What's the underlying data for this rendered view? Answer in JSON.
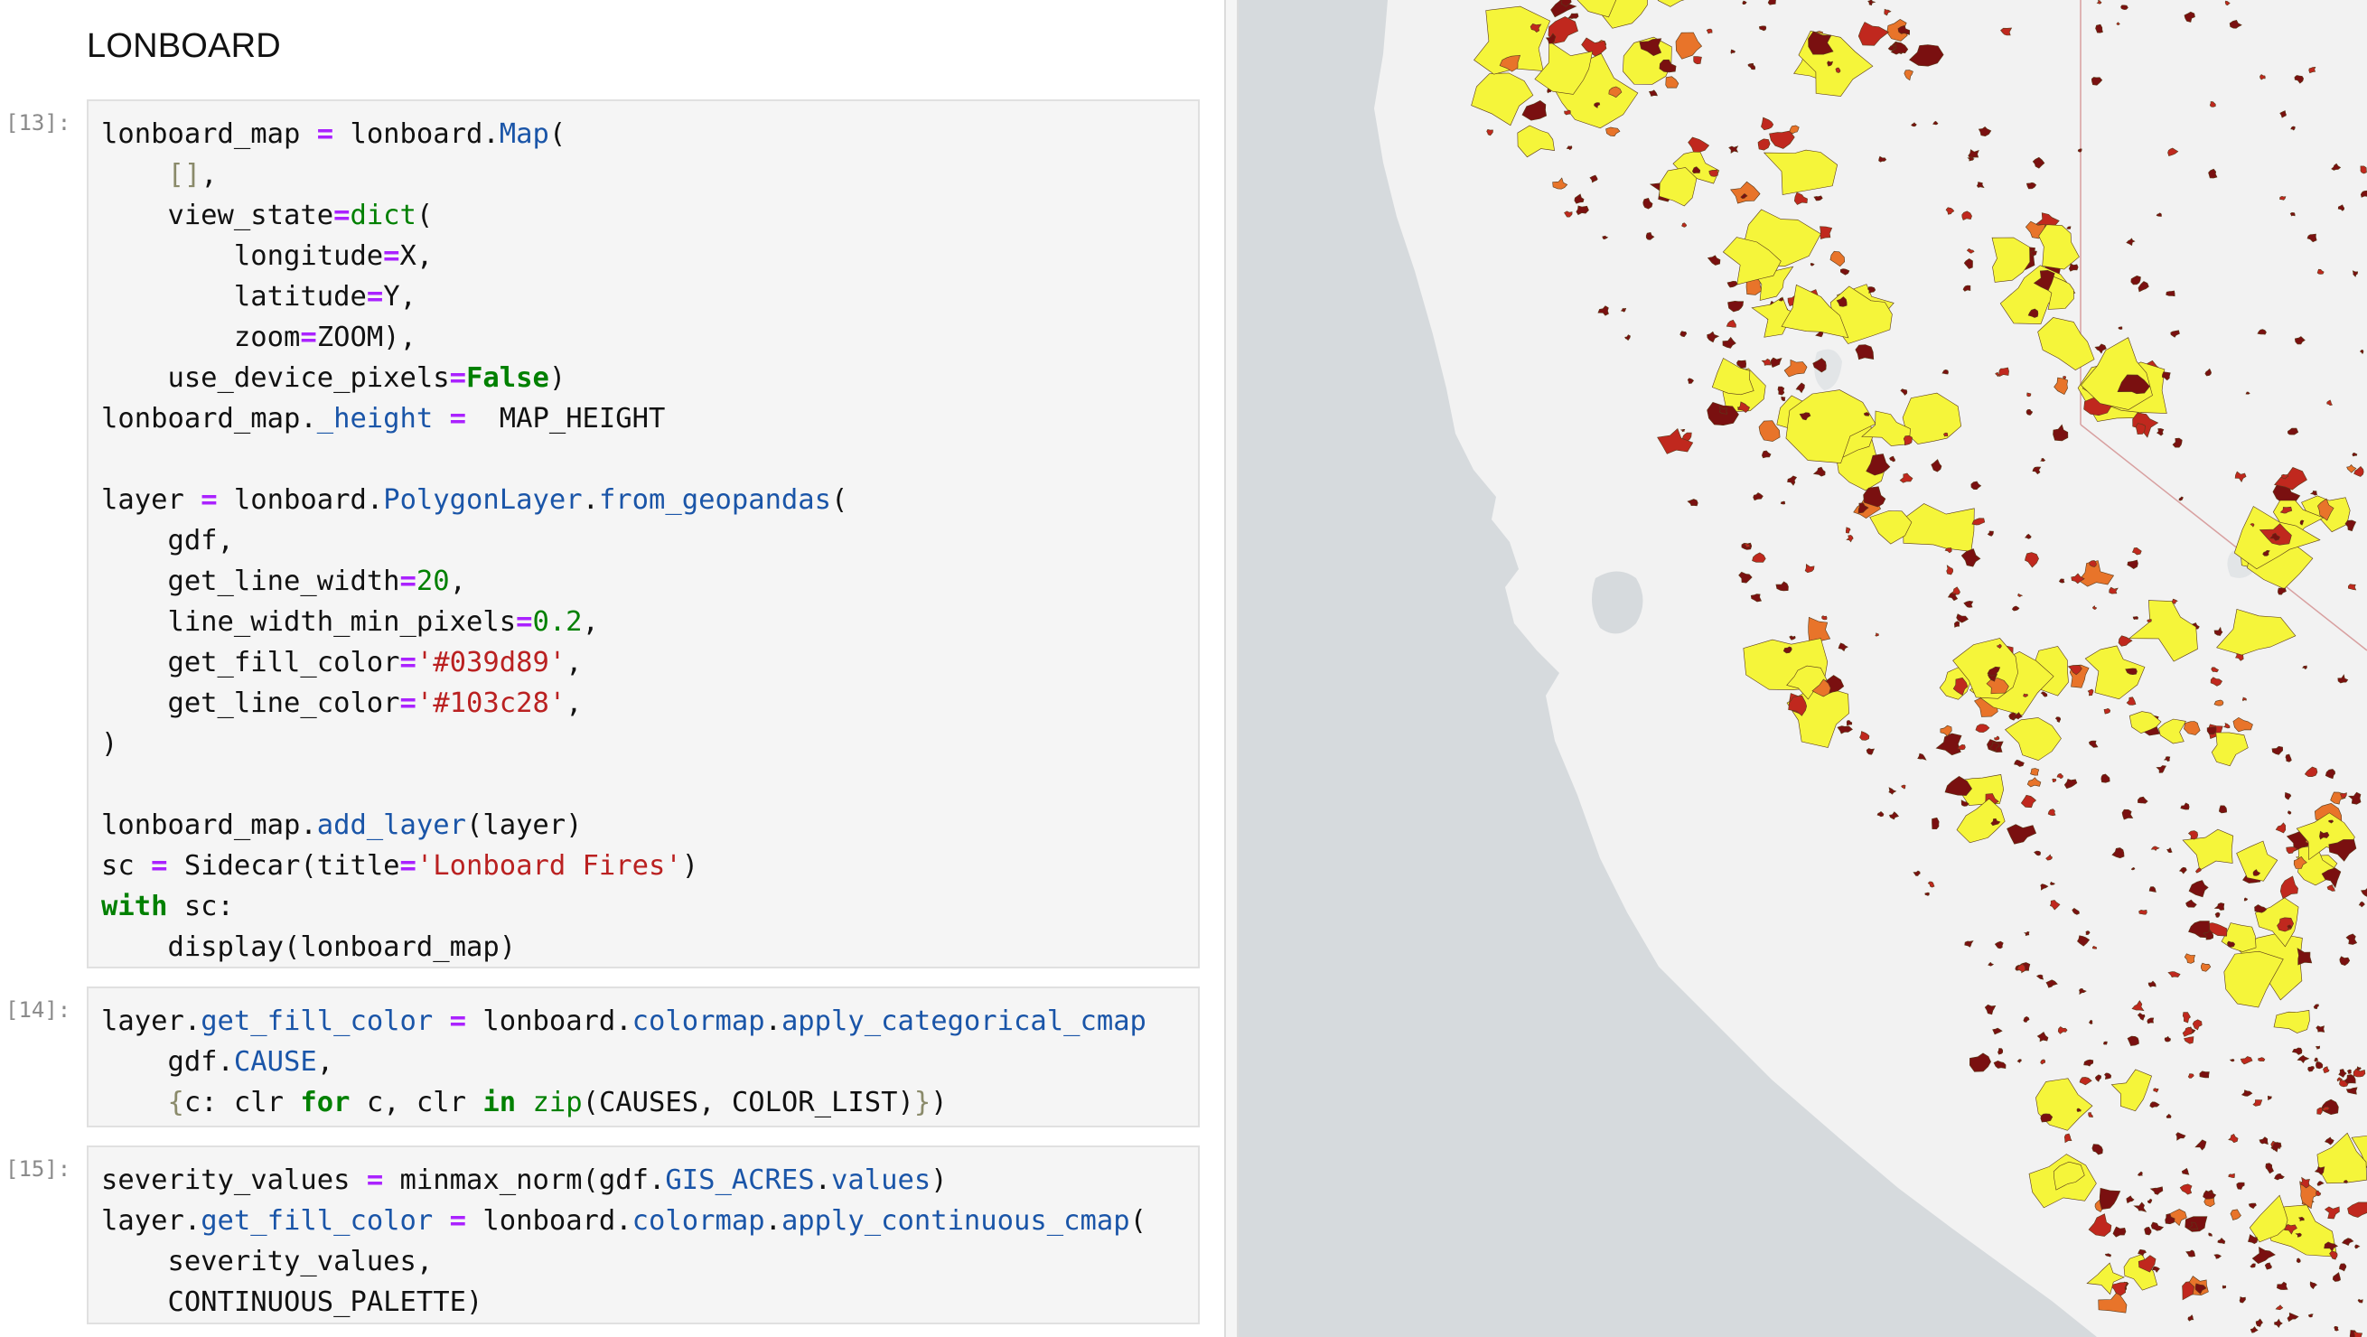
{
  "notebook": {
    "heading": "LONBOARD",
    "cells": [
      {
        "prompt": "[13]:",
        "lines": [
          [
            {
              "t": "lonboard_map "
            },
            {
              "t": "=",
              "c": "o"
            },
            {
              "t": " lonboard."
            },
            {
              "t": "Map",
              "c": "a"
            },
            {
              "t": "("
            }
          ],
          [
            {
              "t": "    "
            },
            {
              "t": "[]",
              "c": "br"
            },
            {
              "t": ","
            }
          ],
          [
            {
              "t": "    view_state"
            },
            {
              "t": "=",
              "c": "o"
            },
            {
              "t": "dict",
              "c": "b"
            },
            {
              "t": "("
            }
          ],
          [
            {
              "t": "        longitude"
            },
            {
              "t": "=",
              "c": "o"
            },
            {
              "t": "X,"
            }
          ],
          [
            {
              "t": "        latitude"
            },
            {
              "t": "=",
              "c": "o"
            },
            {
              "t": "Y,"
            }
          ],
          [
            {
              "t": "        zoom"
            },
            {
              "t": "=",
              "c": "o"
            },
            {
              "t": "ZOOM),"
            }
          ],
          [
            {
              "t": "    use_device_pixels"
            },
            {
              "t": "=",
              "c": "o"
            },
            {
              "t": "False",
              "c": "k"
            },
            {
              "t": ")"
            }
          ],
          [
            {
              "t": "lonboard_map."
            },
            {
              "t": "_height",
              "c": "a"
            },
            {
              "t": " "
            },
            {
              "t": "=",
              "c": "o"
            },
            {
              "t": "  MAP_HEIGHT"
            }
          ],
          [],
          [
            {
              "t": "layer "
            },
            {
              "t": "=",
              "c": "o"
            },
            {
              "t": " lonboard."
            },
            {
              "t": "PolygonLayer",
              "c": "a"
            },
            {
              "t": "."
            },
            {
              "t": "from_geopandas",
              "c": "a"
            },
            {
              "t": "("
            }
          ],
          [
            {
              "t": "    gdf,"
            }
          ],
          [
            {
              "t": "    get_line_width"
            },
            {
              "t": "=",
              "c": "o"
            },
            {
              "t": "20",
              "c": "n"
            },
            {
              "t": ","
            }
          ],
          [
            {
              "t": "    line_width_min_pixels"
            },
            {
              "t": "=",
              "c": "o"
            },
            {
              "t": "0.2",
              "c": "n"
            },
            {
              "t": ","
            }
          ],
          [
            {
              "t": "    get_fill_color"
            },
            {
              "t": "=",
              "c": "o"
            },
            {
              "t": "'#039d89'",
              "c": "s"
            },
            {
              "t": ","
            }
          ],
          [
            {
              "t": "    get_line_color"
            },
            {
              "t": "=",
              "c": "o"
            },
            {
              "t": "'#103c28'",
              "c": "s"
            },
            {
              "t": ","
            }
          ],
          [
            {
              "t": ")"
            }
          ],
          [],
          [
            {
              "t": "lonboard_map."
            },
            {
              "t": "add_layer",
              "c": "a"
            },
            {
              "t": "(layer)"
            }
          ],
          [
            {
              "t": "sc "
            },
            {
              "t": "=",
              "c": "o"
            },
            {
              "t": " Sidecar(title"
            },
            {
              "t": "=",
              "c": "o"
            },
            {
              "t": "'Lonboard Fires'",
              "c": "s"
            },
            {
              "t": ")"
            }
          ],
          [
            {
              "t": "with",
              "c": "k"
            },
            {
              "t": " sc:"
            }
          ],
          [
            {
              "t": "    display(lonboard_map)"
            }
          ]
        ]
      },
      {
        "prompt": "[14]:",
        "lines": [
          [
            {
              "t": "layer."
            },
            {
              "t": "get_fill_color",
              "c": "a"
            },
            {
              "t": " "
            },
            {
              "t": "=",
              "c": "o"
            },
            {
              "t": " lonboard."
            },
            {
              "t": "colormap",
              "c": "a"
            },
            {
              "t": "."
            },
            {
              "t": "apply_categorical_cmap",
              "c": "a"
            }
          ],
          [
            {
              "t": "    gdf."
            },
            {
              "t": "CAUSE",
              "c": "a"
            },
            {
              "t": ","
            }
          ],
          [
            {
              "t": "    "
            },
            {
              "t": "{",
              "c": "br"
            },
            {
              "t": "c: clr "
            },
            {
              "t": "for",
              "c": "k"
            },
            {
              "t": " c, clr "
            },
            {
              "t": "in",
              "c": "k"
            },
            {
              "t": " "
            },
            {
              "t": "zip",
              "c": "b"
            },
            {
              "t": "(CAUSES, COLOR_LIST)"
            },
            {
              "t": "}",
              "c": "br"
            },
            {
              "t": ")"
            }
          ]
        ]
      },
      {
        "prompt": "[15]:",
        "lines": [
          [
            {
              "t": "severity_values "
            },
            {
              "t": "=",
              "c": "o"
            },
            {
              "t": " minmax_norm(gdf."
            },
            {
              "t": "GIS_ACRES",
              "c": "a"
            },
            {
              "t": "."
            },
            {
              "t": "values",
              "c": "a"
            },
            {
              "t": ")"
            }
          ],
          [
            {
              "t": "layer."
            },
            {
              "t": "get_fill_color",
              "c": "a"
            },
            {
              "t": " "
            },
            {
              "t": "=",
              "c": "o"
            },
            {
              "t": " lonboard."
            },
            {
              "t": "colormap",
              "c": "a"
            },
            {
              "t": "."
            },
            {
              "t": "apply_continuous_cmap",
              "c": "a"
            },
            {
              "t": "("
            }
          ],
          [
            {
              "t": "    severity_values,"
            }
          ],
          [
            {
              "t": "    CONTINUOUS_PALETTE)"
            }
          ]
        ]
      }
    ]
  },
  "map": {
    "ocean_color": "#d6dadd",
    "land_color": "#f2f2f2",
    "fire_colors": [
      "#f5f53a",
      "#7a1010",
      "#c0281e",
      "#e8742a"
    ]
  }
}
